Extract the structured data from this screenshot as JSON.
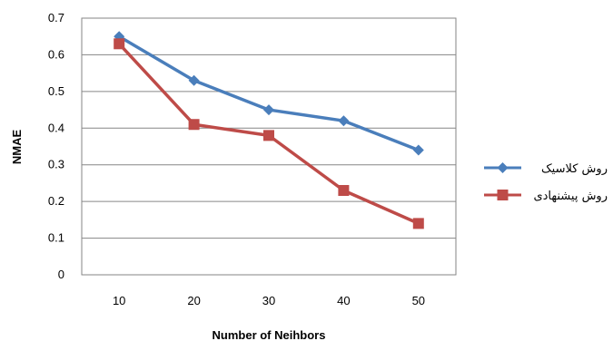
{
  "chart_data": {
    "type": "line",
    "xlabel": "Number of Neihbors",
    "ylabel": "NMAE",
    "categories": [
      "10",
      "20",
      "30",
      "40",
      "50"
    ],
    "y_ticks": [
      "0",
      "0.1",
      "0.2",
      "0.3",
      "0.4",
      "0.5",
      "0.6",
      "0.7"
    ],
    "ylim": [
      0,
      0.7
    ],
    "grid": "horizontal",
    "legend_position": "right",
    "series": [
      {
        "name": "روش کلاسیک",
        "values": [
          0.65,
          0.53,
          0.45,
          0.42,
          0.34
        ],
        "color": "#4a7ebb",
        "marker": "diamond"
      },
      {
        "name": "روش پیشنهادی",
        "values": [
          0.63,
          0.41,
          0.38,
          0.23,
          0.14
        ],
        "color": "#be4b48",
        "marker": "square"
      }
    ]
  }
}
